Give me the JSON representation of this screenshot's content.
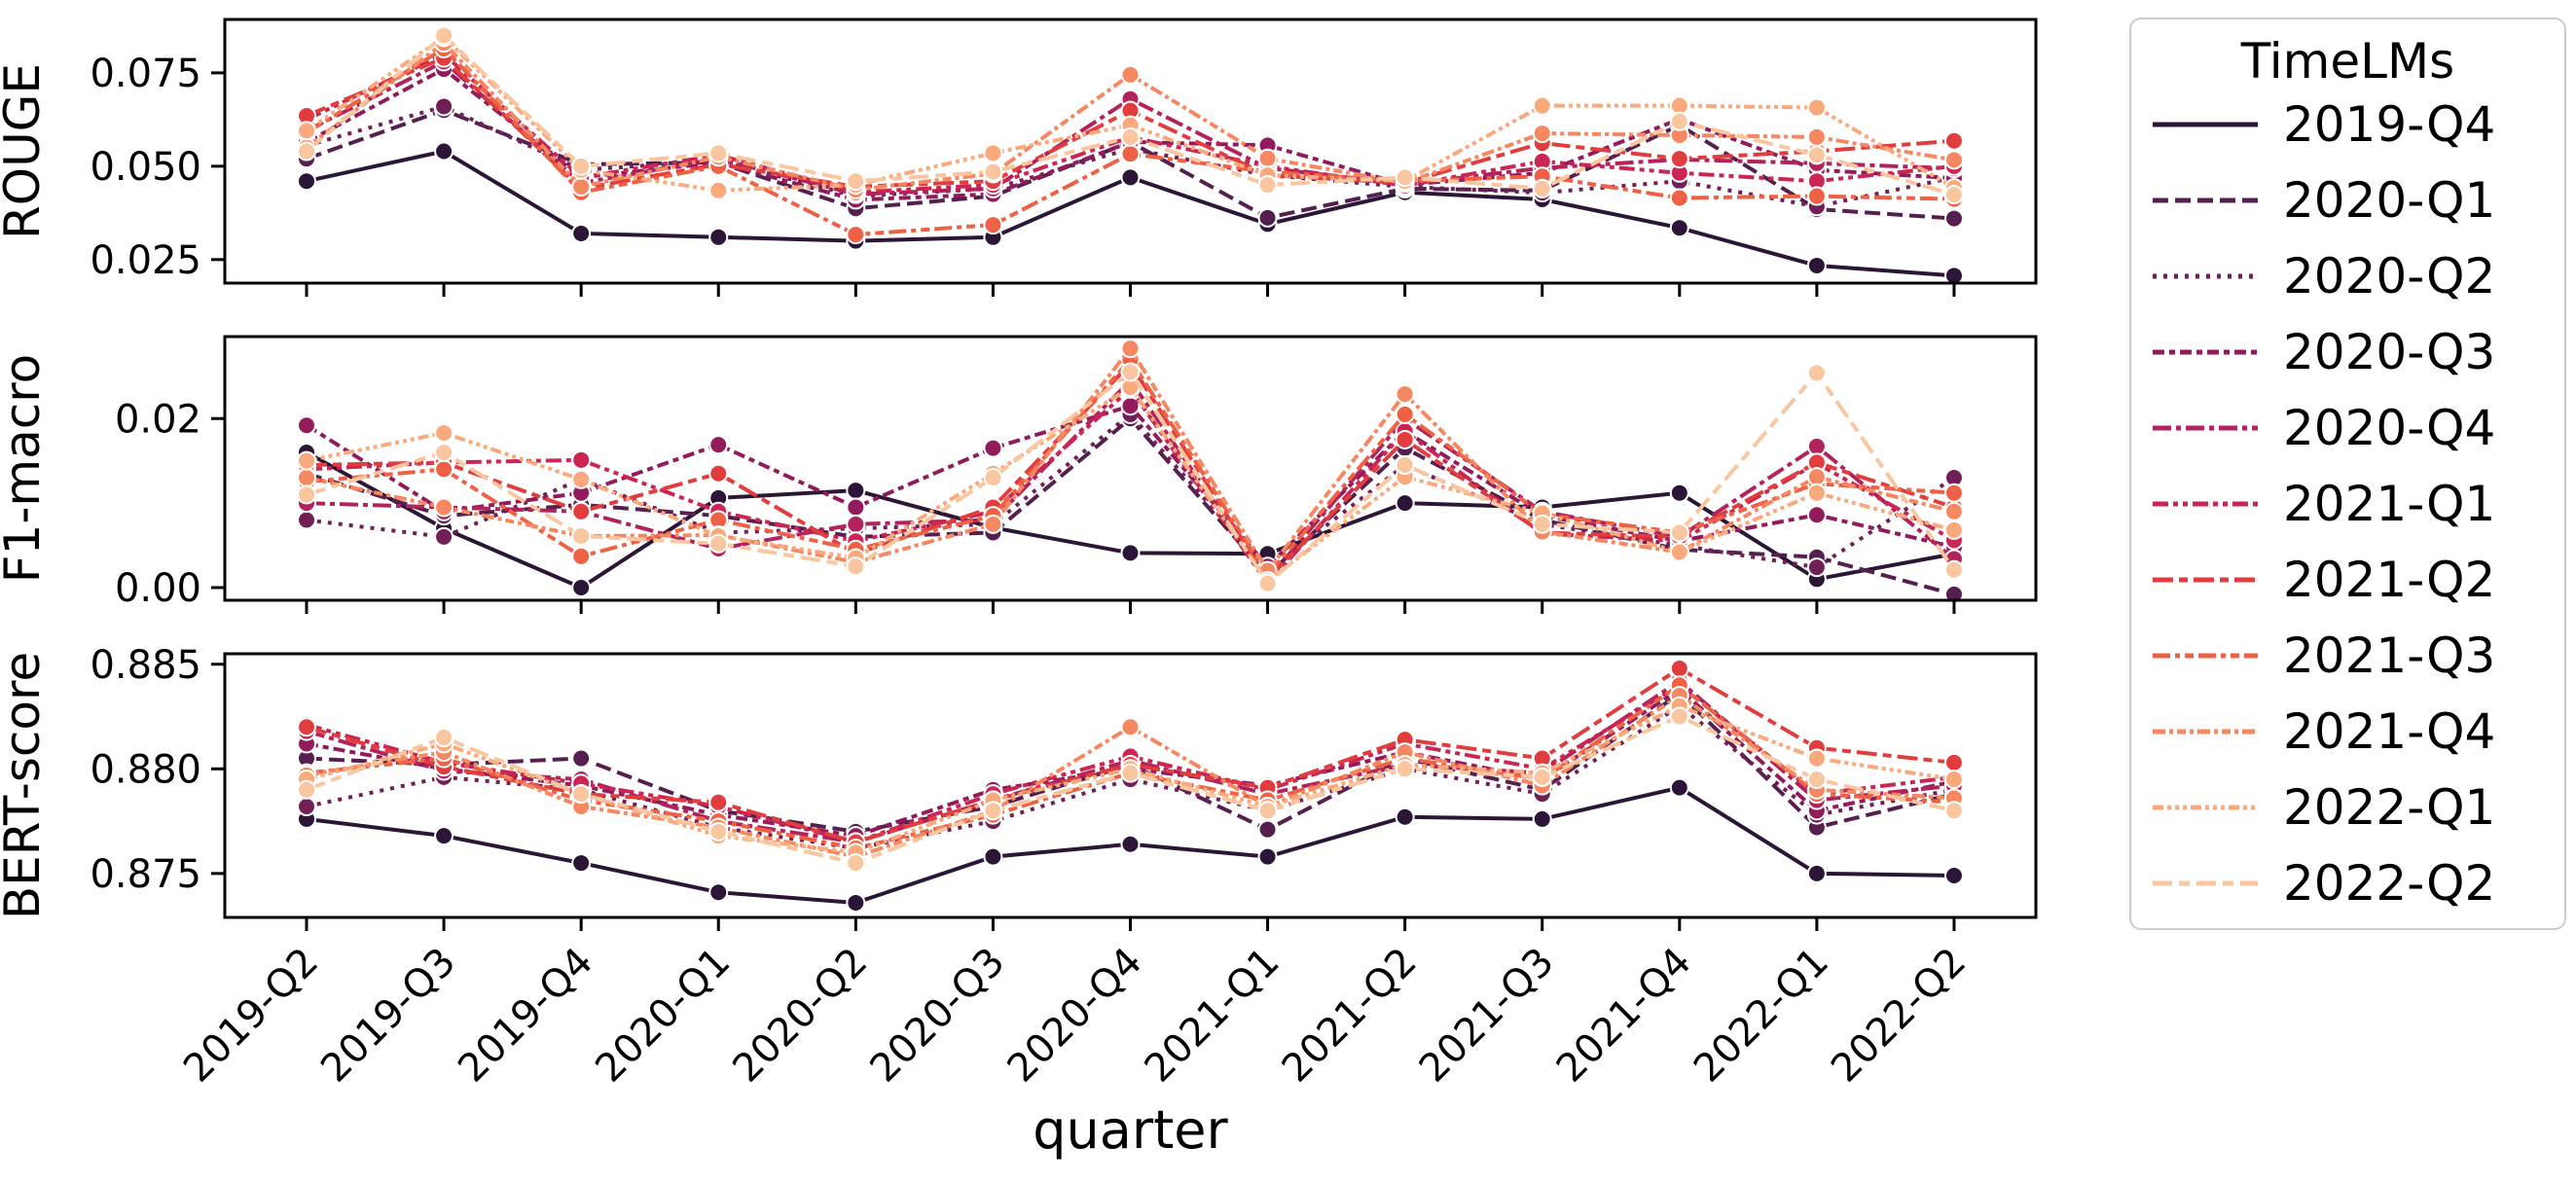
{
  "figure": {
    "background": "#ffffff"
  },
  "legend": {
    "title": "TimeLMs",
    "border_color": "#cccccc"
  },
  "x_axis": {
    "label": "quarter",
    "categories": [
      "2019-Q2",
      "2019-Q3",
      "2019-Q4",
      "2020-Q1",
      "2020-Q2",
      "2020-Q3",
      "2020-Q4",
      "2021-Q1",
      "2021-Q2",
      "2021-Q3",
      "2021-Q4",
      "2022-Q1",
      "2022-Q2"
    ]
  },
  "series_styles": [
    {
      "label": "2019-Q4",
      "color": "#2b1638",
      "dash": ""
    },
    {
      "label": "2020-Q1",
      "color": "#55204f",
      "dash": "16,7"
    },
    {
      "label": "2020-Q2",
      "color": "#711f57",
      "dash": "4,7"
    },
    {
      "label": "2020-Q3",
      "color": "#921c5b",
      "dash": "12,5,6,5"
    },
    {
      "label": "2020-Q4",
      "color": "#b1235a",
      "dash": "19,5,5,5"
    },
    {
      "label": "2021-Q1",
      "color": "#ca2553",
      "dash": "16,5,5,5,5,5"
    },
    {
      "label": "2021-Q2",
      "color": "#e13d3f",
      "dash": "21,6,9,6"
    },
    {
      "label": "2021-Q3",
      "color": "#ee6145",
      "dash": "18,5,5,5,9,5"
    },
    {
      "label": "2021-Q4",
      "color": "#f58860",
      "dash": "13,4,4,4,9,4,4,4"
    },
    {
      "label": "2022-Q1",
      "color": "#f9a97c",
      "dash": "11,4,4,4,4,4,4,4"
    },
    {
      "label": "2022-Q2",
      "color": "#f9c6a0",
      "dash": "20,7,11,7"
    }
  ],
  "chart_data": [
    {
      "type": "line",
      "ylabel": "ROUGE",
      "ylim": [
        0.0187,
        0.0893
      ],
      "yticks": [
        0.025,
        0.05,
        0.075
      ],
      "ytick_labels": [
        "0.025",
        "0.050",
        "0.075"
      ],
      "categories": [
        "2019-Q2",
        "2019-Q3",
        "2019-Q4",
        "2020-Q1",
        "2020-Q2",
        "2020-Q3",
        "2020-Q4",
        "2021-Q1",
        "2021-Q2",
        "2021-Q3",
        "2021-Q4",
        "2022-Q1",
        "2022-Q2"
      ],
      "series": [
        {
          "name": "2019-Q4",
          "values": [
            0.046,
            0.054,
            0.032,
            0.031,
            0.03,
            0.031,
            0.047,
            0.0345,
            0.043,
            0.0411,
            0.0335,
            0.0234,
            0.0207
          ]
        },
        {
          "name": "2020-Q1",
          "values": [
            0.052,
            0.065,
            0.0505,
            0.051,
            0.0387,
            0.042,
            0.0565,
            0.0362,
            0.044,
            0.0435,
            0.061,
            0.0385,
            0.036
          ]
        },
        {
          "name": "2020-Q2",
          "values": [
            0.0555,
            0.066,
            0.049,
            0.0515,
            0.042,
            0.044,
            0.0547,
            0.0476,
            0.0445,
            0.0429,
            0.046,
            0.0392,
            0.047
          ]
        },
        {
          "name": "2020-Q3",
          "values": [
            0.0565,
            0.076,
            0.047,
            0.051,
            0.041,
            0.0425,
            0.0565,
            0.0556,
            0.045,
            0.0482,
            0.0626,
            0.049,
            0.0468
          ]
        },
        {
          "name": "2020-Q4",
          "values": [
            0.0595,
            0.078,
            0.0455,
            0.052,
            0.0425,
            0.044,
            0.068,
            0.0495,
            0.0452,
            0.0495,
            0.0518,
            0.0508,
            0.0494
          ]
        },
        {
          "name": "2021-Q1",
          "values": [
            0.0625,
            0.08,
            0.047,
            0.053,
            0.043,
            0.045,
            0.0578,
            0.05,
            0.0448,
            0.0513,
            0.0482,
            0.046,
            0.05
          ]
        },
        {
          "name": "2021-Q2",
          "values": [
            0.0635,
            0.079,
            0.044,
            0.0505,
            0.0445,
            0.046,
            0.0649,
            0.0476,
            0.0455,
            0.0562,
            0.052,
            0.054,
            0.0568
          ]
        },
        {
          "name": "2021-Q3",
          "values": [
            0.059,
            0.0815,
            0.043,
            0.05,
            0.0317,
            0.0343,
            0.0533,
            0.0485,
            0.046,
            0.0473,
            0.0415,
            0.042,
            0.0412
          ]
        },
        {
          "name": "2021-Q4",
          "values": [
            0.055,
            0.083,
            0.0445,
            0.0525,
            0.0437,
            0.048,
            0.0745,
            0.0521,
            0.0455,
            0.0588,
            0.0583,
            0.0578,
            0.0517
          ]
        },
        {
          "name": "2022-Q1",
          "values": [
            0.0595,
            0.0845,
            0.049,
            0.0435,
            0.045,
            0.0535,
            0.061,
            0.0476,
            0.046,
            0.0662,
            0.0662,
            0.0657,
            0.0442
          ]
        },
        {
          "name": "2022-Q2",
          "values": [
            0.054,
            0.085,
            0.05,
            0.0535,
            0.046,
            0.0485,
            0.0578,
            0.045,
            0.047,
            0.044,
            0.062,
            0.053,
            0.0424
          ]
        }
      ]
    },
    {
      "type": "line",
      "ylabel": "F1-macro",
      "ylim": [
        -0.0015,
        0.0297
      ],
      "yticks": [
        0.0,
        0.02
      ],
      "ytick_labels": [
        "0.00",
        "0.02"
      ],
      "categories": [
        "2019-Q2",
        "2019-Q3",
        "2019-Q4",
        "2020-Q1",
        "2020-Q2",
        "2020-Q3",
        "2020-Q4",
        "2021-Q1",
        "2021-Q2",
        "2021-Q3",
        "2021-Q4",
        "2022-Q1",
        "2022-Q2"
      ],
      "series": [
        {
          "name": "2019-Q4",
          "values": [
            0.016,
            0.007,
            0.0,
            0.0106,
            0.0115,
            0.0071,
            0.0041,
            0.004,
            0.01,
            0.0095,
            0.0112,
            0.001,
            0.004
          ]
        },
        {
          "name": "2020-Q1",
          "values": [
            0.0135,
            0.0085,
            0.0098,
            0.0085,
            0.006,
            0.0065,
            0.02,
            0.0015,
            0.0165,
            0.008,
            0.0045,
            0.0036,
            -0.0008
          ]
        },
        {
          "name": "2020-Q2",
          "values": [
            0.008,
            0.006,
            0.0128,
            0.0065,
            0.007,
            0.0075,
            0.0205,
            0.002,
            0.0145,
            0.0075,
            0.005,
            0.0024,
            0.013
          ]
        },
        {
          "name": "2020-Q3",
          "values": [
            0.0192,
            0.009,
            0.0112,
            0.0169,
            0.0095,
            0.0165,
            0.0215,
            0.0025,
            0.0185,
            0.0085,
            0.0055,
            0.0086,
            0.0048
          ]
        },
        {
          "name": "2020-Q4",
          "values": [
            0.01,
            0.0095,
            0.009,
            0.0046,
            0.0075,
            0.008,
            0.0245,
            0.001,
            0.02,
            0.009,
            0.006,
            0.0167,
            0.0034
          ]
        },
        {
          "name": "2021-Q1",
          "values": [
            0.014,
            0.0148,
            0.0151,
            0.009,
            0.0055,
            0.009,
            0.0235,
            0.0005,
            0.0185,
            0.0064,
            0.0055,
            0.0147,
            0.0056
          ]
        },
        {
          "name": "2021-Q2",
          "values": [
            0.0145,
            0.0148,
            0.009,
            0.0135,
            0.004,
            0.0095,
            0.0265,
            0.001,
            0.0175,
            0.0065,
            0.006,
            0.0148,
            0.0095
          ]
        },
        {
          "name": "2021-Q3",
          "values": [
            0.0125,
            0.014,
            0.0037,
            0.008,
            0.0045,
            0.0085,
            0.027,
            0.0015,
            0.0205,
            0.0087,
            0.0065,
            0.0123,
            0.0112
          ]
        },
        {
          "name": "2021-Q4",
          "values": [
            0.013,
            0.0095,
            0.0061,
            0.0062,
            0.003,
            0.0075,
            0.0283,
            0.002,
            0.0229,
            0.0066,
            0.0042,
            0.0131,
            0.009
          ]
        },
        {
          "name": "2022-Q1",
          "values": [
            0.015,
            0.0183,
            0.0128,
            0.0061,
            0.0035,
            0.0135,
            0.0237,
            0.0008,
            0.0131,
            0.0088,
            0.0042,
            0.0112,
            0.0068
          ]
        },
        {
          "name": "2022-Q2",
          "values": [
            0.011,
            0.016,
            0.0061,
            0.0052,
            0.0025,
            0.013,
            0.0255,
            0.0005,
            0.0145,
            0.0075,
            0.0065,
            0.0254,
            0.0021
          ]
        }
      ]
    },
    {
      "type": "line",
      "ylabel": "BERT-score",
      "ylim": [
        0.8729,
        0.8855
      ],
      "yticks": [
        0.875,
        0.88,
        0.885
      ],
      "ytick_labels": [
        "0.875",
        "0.880",
        "0.885"
      ],
      "categories": [
        "2019-Q2",
        "2019-Q3",
        "2019-Q4",
        "2020-Q1",
        "2020-Q2",
        "2020-Q3",
        "2020-Q4",
        "2021-Q1",
        "2021-Q2",
        "2021-Q3",
        "2021-Q4",
        "2022-Q1",
        "2022-Q2"
      ],
      "series": [
        {
          "name": "2019-Q4",
          "values": [
            0.8776,
            0.8768,
            0.8755,
            0.8741,
            0.8736,
            0.8758,
            0.8764,
            0.8758,
            0.8777,
            0.8776,
            0.8791,
            0.875,
            0.8749
          ]
        },
        {
          "name": "2020-Q1",
          "values": [
            0.8805,
            0.8802,
            0.8805,
            0.878,
            0.877,
            0.8782,
            0.8802,
            0.8771,
            0.8805,
            0.879,
            0.8836,
            0.8772,
            0.8788
          ]
        },
        {
          "name": "2020-Q2",
          "values": [
            0.8782,
            0.8796,
            0.879,
            0.8772,
            0.8762,
            0.8775,
            0.8795,
            0.878,
            0.88,
            0.8788,
            0.883,
            0.8778,
            0.879
          ]
        },
        {
          "name": "2020-Q3",
          "values": [
            0.8812,
            0.88,
            0.8792,
            0.8778,
            0.8768,
            0.879,
            0.88,
            0.8792,
            0.8808,
            0.8795,
            0.8838,
            0.878,
            0.8794
          ]
        },
        {
          "name": "2020-Q4",
          "values": [
            0.8818,
            0.8799,
            0.8795,
            0.8775,
            0.8765,
            0.8785,
            0.8804,
            0.8788,
            0.8802,
            0.8798,
            0.8842,
            0.8785,
            0.8792
          ]
        },
        {
          "name": "2021-Q1",
          "values": [
            0.8821,
            0.8803,
            0.8793,
            0.8782,
            0.8765,
            0.8788,
            0.8806,
            0.879,
            0.8812,
            0.88,
            0.884,
            0.8788,
            0.8796
          ]
        },
        {
          "name": "2021-Q2",
          "values": [
            0.882,
            0.8801,
            0.8788,
            0.8784,
            0.8765,
            0.8785,
            0.8802,
            0.8791,
            0.8814,
            0.8805,
            0.8848,
            0.881,
            0.8803
          ]
        },
        {
          "name": "2021-Q3",
          "values": [
            0.8798,
            0.8805,
            0.8785,
            0.8775,
            0.8762,
            0.8778,
            0.8798,
            0.8785,
            0.8805,
            0.8795,
            0.884,
            0.8788,
            0.8784
          ]
        },
        {
          "name": "2021-Q4",
          "values": [
            0.8797,
            0.8808,
            0.8782,
            0.8772,
            0.8758,
            0.878,
            0.882,
            0.8782,
            0.8808,
            0.8792,
            0.8835,
            0.879,
            0.8786
          ]
        },
        {
          "name": "2022-Q1",
          "values": [
            0.8795,
            0.8812,
            0.8788,
            0.8768,
            0.876,
            0.8785,
            0.88,
            0.8782,
            0.8802,
            0.8798,
            0.883,
            0.8805,
            0.8795
          ]
        },
        {
          "name": "2022-Q2",
          "values": [
            0.879,
            0.8815,
            0.8788,
            0.877,
            0.8755,
            0.878,
            0.8798,
            0.878,
            0.88,
            0.8796,
            0.8825,
            0.8795,
            0.878
          ]
        }
      ]
    }
  ]
}
